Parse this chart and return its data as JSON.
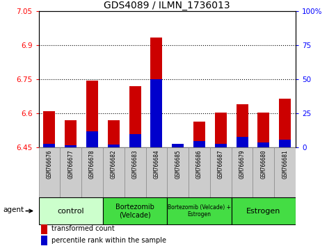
{
  "title": "GDS4089 / ILMN_1736013",
  "samples": [
    "GSM766676",
    "GSM766677",
    "GSM766678",
    "GSM766682",
    "GSM766683",
    "GSM766684",
    "GSM766685",
    "GSM766686",
    "GSM766687",
    "GSM766679",
    "GSM766680",
    "GSM766681"
  ],
  "transformed_count": [
    6.61,
    6.57,
    6.745,
    6.57,
    6.72,
    6.935,
    6.465,
    6.565,
    6.605,
    6.64,
    6.605,
    6.665
  ],
  "percentile_rank": [
    2.5,
    1.5,
    12.0,
    2.0,
    10.0,
    50.0,
    2.5,
    5.0,
    3.0,
    8.0,
    4.0,
    6.0
  ],
  "ylim_left": [
    6.45,
    7.05
  ],
  "ylim_right": [
    0,
    100
  ],
  "yticks_left": [
    6.45,
    6.6,
    6.75,
    6.9,
    7.05
  ],
  "yticks_right": [
    0,
    25,
    50,
    75,
    100
  ],
  "ytick_labels_left": [
    "6.45",
    "6.6",
    "6.75",
    "6.9",
    "7.05"
  ],
  "ytick_labels_right": [
    "0",
    "25",
    "50",
    "75",
    "100%"
  ],
  "grid_lines": [
    6.6,
    6.75,
    6.9
  ],
  "bar_color_red": "#cc0000",
  "bar_color_blue": "#0000cc",
  "base_value": 6.45,
  "group_configs": [
    {
      "label": "control",
      "start": 0,
      "end": 3,
      "color": "#ccffcc",
      "fontsize": 8
    },
    {
      "label": "Bortezomib\n(Velcade)",
      "start": 3,
      "end": 6,
      "color": "#44dd44",
      "fontsize": 7
    },
    {
      "label": "Bortezomib (Velcade) +\nEstrogen",
      "start": 6,
      "end": 9,
      "color": "#44dd44",
      "fontsize": 5.5
    },
    {
      "label": "Estrogen",
      "start": 9,
      "end": 12,
      "color": "#44dd44",
      "fontsize": 8
    }
  ],
  "agent_label": "agent",
  "legend_red_label": "transformed count",
  "legend_blue_label": "percentile rank within the sample"
}
